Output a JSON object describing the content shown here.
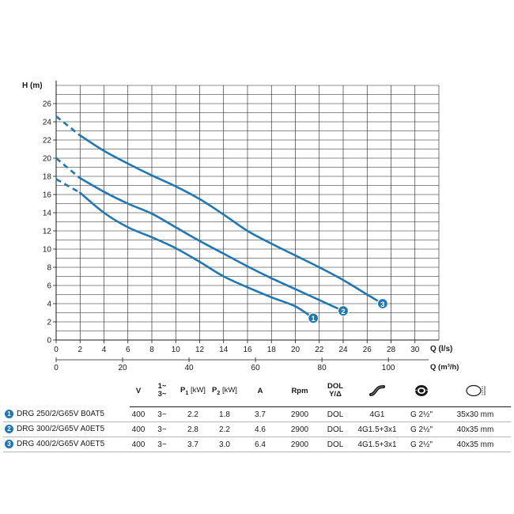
{
  "chart_data": {
    "type": "line",
    "ylabel": "H (m)",
    "xlabel": "Q (l/s)",
    "xlabel2": "Q (m³/h)",
    "xlim": [
      0,
      32
    ],
    "ylim": [
      0,
      28
    ],
    "x_ticks": [
      "0",
      "2",
      "4",
      "6",
      "8",
      "10",
      "12",
      "14",
      "16",
      "18",
      "20",
      "22",
      "24",
      "26",
      "28",
      "30"
    ],
    "y_ticks": [
      "0",
      "2",
      "4",
      "6",
      "8",
      "10",
      "12",
      "14",
      "16",
      "18",
      "20",
      "22",
      "24",
      "26"
    ],
    "x2_ticks": [
      "0",
      "20",
      "40",
      "60",
      "80",
      "100"
    ],
    "grid": true,
    "series": [
      {
        "marker": "1",
        "color": "#1f78b4",
        "dashed": [
          [
            0,
            17.7
          ],
          [
            2,
            16.2
          ]
        ],
        "points": [
          [
            2,
            16.2
          ],
          [
            4,
            14.0
          ],
          [
            6,
            12.4
          ],
          [
            8,
            11.3
          ],
          [
            10,
            10.1
          ],
          [
            12,
            8.6
          ],
          [
            14,
            7.0
          ],
          [
            16,
            5.8
          ],
          [
            18,
            4.7
          ],
          [
            20,
            3.7
          ],
          [
            21.5,
            2.4
          ]
        ]
      },
      {
        "marker": "2",
        "color": "#1f78b4",
        "dashed": [
          [
            0,
            20.0
          ],
          [
            2,
            17.8
          ]
        ],
        "points": [
          [
            2,
            17.8
          ],
          [
            4,
            16.3
          ],
          [
            6,
            15.0
          ],
          [
            8,
            13.9
          ],
          [
            10,
            12.4
          ],
          [
            12,
            10.9
          ],
          [
            14,
            9.5
          ],
          [
            16,
            8.1
          ],
          [
            18,
            6.8
          ],
          [
            20,
            5.6
          ],
          [
            22,
            4.4
          ],
          [
            24,
            3.2
          ]
        ]
      },
      {
        "marker": "3",
        "color": "#1f78b4",
        "dashed": [
          [
            0,
            24.6
          ],
          [
            2,
            22.5
          ]
        ],
        "points": [
          [
            2,
            22.5
          ],
          [
            4,
            20.8
          ],
          [
            6,
            19.4
          ],
          [
            8,
            18.1
          ],
          [
            10,
            16.9
          ],
          [
            12,
            15.5
          ],
          [
            14,
            13.8
          ],
          [
            16,
            12.0
          ],
          [
            18,
            10.6
          ],
          [
            20,
            9.3
          ],
          [
            22,
            8.0
          ],
          [
            24,
            6.6
          ],
          [
            26,
            5.0
          ],
          [
            27.3,
            4.0
          ]
        ]
      }
    ]
  },
  "table": {
    "headers": {
      "v": "V",
      "phase_top": "1~",
      "phase_bottom": "3~",
      "p1_prefix": "P",
      "p1_sub": "1",
      "p1_unit": "[kW]",
      "p2_prefix": "P",
      "p2_sub": "2",
      "p2_unit": "[kW]",
      "a": "A",
      "rpm": "Rpm",
      "start_top": "DOL",
      "start_bottom": "Y/Δ",
      "cable_icon": "cable-icon",
      "outlet_icon": "threaded-outlet-icon",
      "dimension_icon": "dimensions-icon"
    },
    "rows": [
      {
        "num": "1",
        "model": "DRG 250/2/G65V B0AT5",
        "v": "400",
        "phase": "3~",
        "p1": "2.2",
        "p2": "1.8",
        "a": "3.7",
        "rpm": "2900",
        "start": "DOL",
        "cable": "4G1",
        "outlet": "G 2½\"",
        "dims": "35x30 mm"
      },
      {
        "num": "2",
        "model": "DRG 300/2/G65V A0ET5",
        "v": "400",
        "phase": "3~",
        "p1": "2.8",
        "p2": "2.2",
        "a": "4.6",
        "rpm": "2900",
        "start": "DOL",
        "cable": "4G1.5+3x1",
        "outlet": "G 2½\"",
        "dims": "40x35 mm"
      },
      {
        "num": "3",
        "model": "DRG 400/2/G65V A0ET5",
        "v": "400",
        "phase": "3~",
        "p1": "3.7",
        "p2": "3.0",
        "a": "6.4",
        "rpm": "2900",
        "start": "DOL",
        "cable": "4G1.5+3x1",
        "outlet": "G 2½\"",
        "dims": "40x35 mm"
      }
    ]
  }
}
